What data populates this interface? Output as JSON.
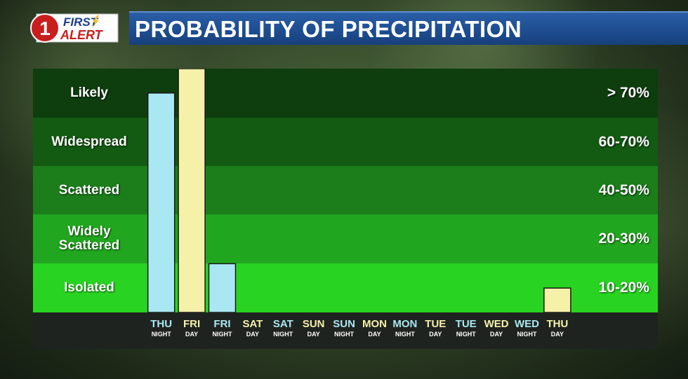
{
  "title": "PROBABILITY OF PRECIPITATION",
  "logo": {
    "line1": "FIRST",
    "line2": "ALERT",
    "numeral": "1"
  },
  "bands": [
    {
      "label": "Likely",
      "range": "> 70%",
      "color": "#0e3d0e"
    },
    {
      "label": "Widespread",
      "range": "60-70%",
      "color": "#135a13"
    },
    {
      "label": "Scattered",
      "range": "40-50%",
      "color": "#1b7e1b"
    },
    {
      "label": "Widely Scattered",
      "range": "20-30%",
      "color": "#21a61f"
    },
    {
      "label": "Isolated",
      "range": "10-20%",
      "color": "#28d421"
    }
  ],
  "colors": {
    "night": "#a9e8f2",
    "day": "#f6f1a9",
    "night_text": "#a9e8f2",
    "day_text": "#f6f1a9"
  },
  "chart_data": {
    "type": "bar",
    "categories": [
      {
        "day": "THU",
        "period": "NIGHT"
      },
      {
        "day": "FRI",
        "period": "DAY"
      },
      {
        "day": "FRI",
        "period": "NIGHT"
      },
      {
        "day": "SAT",
        "period": "DAY"
      },
      {
        "day": "SAT",
        "period": "NIGHT"
      },
      {
        "day": "SUN",
        "period": "DAY"
      },
      {
        "day": "SUN",
        "period": "NIGHT"
      },
      {
        "day": "MON",
        "period": "DAY"
      },
      {
        "day": "MON",
        "period": "NIGHT"
      },
      {
        "day": "TUE",
        "period": "DAY"
      },
      {
        "day": "TUE",
        "period": "NIGHT"
      },
      {
        "day": "WED",
        "period": "DAY"
      },
      {
        "day": "WED",
        "period": "NIGHT"
      },
      {
        "day": "THU",
        "period": "DAY"
      }
    ],
    "values": [
      4.5,
      5,
      1,
      0,
      0,
      0,
      0,
      0,
      0,
      0,
      0,
      0,
      0,
      0.5
    ],
    "value_scale": "band levels from Isolated (0-1) to Likely (4-5)",
    "ylim": [
      0,
      5
    ]
  }
}
